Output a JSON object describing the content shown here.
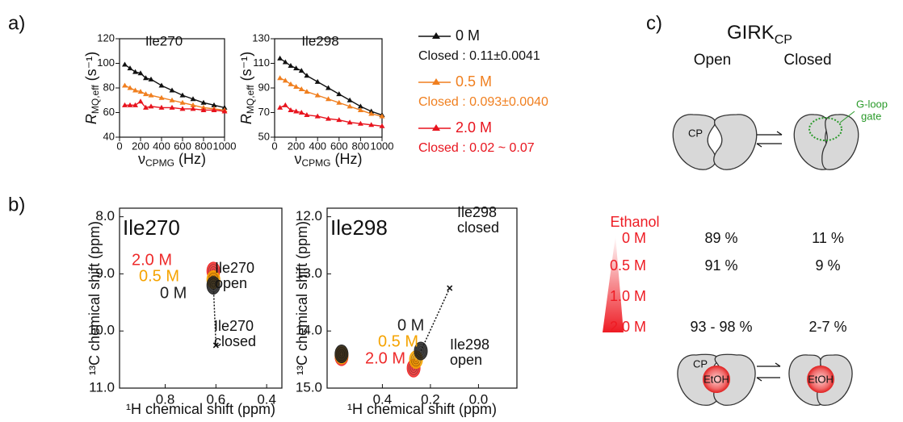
{
  "panel_labels": [
    "a)",
    "b)",
    "c)"
  ],
  "chart_data": [
    {
      "type": "line",
      "title": "Ile270",
      "xlabel": "ν",
      "xlabel_sub": "CPMG",
      "xlabel_unit": " (Hz)",
      "ylabel": "R",
      "ylabel_sub": "MQ,eff",
      "ylabel_unit": " (s⁻¹)",
      "x": [
        50,
        100,
        150,
        200,
        250,
        300,
        400,
        500,
        600,
        700,
        800,
        900,
        1000
      ],
      "series": [
        {
          "name": "0 M",
          "color": "#111111",
          "note": "Closed : 0.11±0.0041",
          "values": [
            99,
            96,
            93,
            92,
            88,
            87,
            82,
            78,
            74,
            71,
            68,
            66,
            64
          ]
        },
        {
          "name": "0.5 M",
          "color": "#f07f1f",
          "note": "Closed : 0.093±0.0040",
          "values": [
            82,
            80,
            78,
            77,
            75,
            74,
            72,
            70,
            68,
            66,
            64,
            63,
            62
          ]
        },
        {
          "name": "2.0 M",
          "color": "#e8141e",
          "note": "Closed :  0.02 ~ 0.07",
          "values": [
            66,
            66,
            66,
            69,
            64,
            65,
            64,
            64,
            63,
            63,
            62,
            62,
            61
          ]
        }
      ],
      "xlim": [
        0,
        1000
      ],
      "xticks": [
        0,
        200,
        400,
        600,
        800,
        1000
      ],
      "ylim": [
        40,
        120
      ],
      "yticks": [
        40,
        60,
        80,
        100,
        120
      ]
    },
    {
      "type": "line",
      "title": "Ile298",
      "xlabel": "ν",
      "xlabel_sub": "CPMG",
      "xlabel_unit": " (Hz)",
      "ylabel": "R",
      "ylabel_sub": "MQ,eff",
      "ylabel_unit": " (s⁻¹)",
      "x": [
        50,
        100,
        150,
        200,
        250,
        300,
        400,
        500,
        600,
        700,
        800,
        900,
        1000
      ],
      "series": [
        {
          "color": "#111111",
          "values": [
            114,
            111,
            108,
            106,
            104,
            100,
            95,
            90,
            85,
            80,
            75,
            71,
            68
          ]
        },
        {
          "color": "#f07f1f",
          "values": [
            98,
            96,
            93,
            91,
            89,
            87,
            84,
            81,
            78,
            75,
            72,
            69,
            67
          ]
        },
        {
          "color": "#e8141e",
          "values": [
            74,
            76,
            72,
            71,
            70,
            68,
            67,
            65,
            64,
            62,
            61,
            60,
            59
          ]
        }
      ],
      "xlim": [
        0,
        1000
      ],
      "xticks": [
        0,
        200,
        400,
        600,
        800,
        1000
      ],
      "ylim": [
        50,
        130
      ],
      "yticks": [
        50,
        70,
        90,
        110,
        130
      ]
    },
    {
      "type": "scatter",
      "title": "Ile270",
      "xlabel": "¹H chemical shift (ppm)",
      "ylabel": "¹³C chemical shift (ppm)",
      "series": [
        {
          "name": "0 M",
          "color": "#222222",
          "x": [
            0.61
          ],
          "values": [
            9.2
          ]
        },
        {
          "name": "0.5 M",
          "color": "#f5a300",
          "x": [
            0.61
          ],
          "values": [
            9.1
          ]
        },
        {
          "name": "2.0 M",
          "color": "#ee2a2a",
          "x": [
            0.61
          ],
          "values": [
            8.95
          ]
        }
      ],
      "open_label": [
        "Ile270",
        "open"
      ],
      "closed_label": [
        "Ile270",
        "closed"
      ],
      "closed_point": {
        "x": 0.6,
        "y": 10.25
      },
      "xlim": [
        0.98,
        0.34
      ],
      "xticks": [
        0.8,
        0.6,
        0.4
      ],
      "ylim": [
        11.0,
        7.85
      ],
      "yticks": [
        {
          "value": 8,
          "label": "8.0"
        },
        {
          "value": 9,
          "label": "9.0"
        },
        {
          "value": 10,
          "label": "10.0"
        },
        {
          "value": 11,
          "label": "11.0"
        }
      ]
    },
    {
      "type": "scatter",
      "title": "Ile298",
      "xlabel": "¹H chemical shift (ppm)",
      "ylabel": "¹³C chemical shift (ppm)",
      "series": [
        {
          "name": "0 M",
          "color": "#222222",
          "x": [
            0.57,
            0.24
          ],
          "values": [
            14.4,
            14.35
          ]
        },
        {
          "name": "0.5 M",
          "color": "#f5a300",
          "x": [
            0.57,
            0.26
          ],
          "values": [
            14.42,
            14.5
          ]
        },
        {
          "name": "2.0 M",
          "color": "#ee2a2a",
          "x": [
            0.57,
            0.27
          ],
          "values": [
            14.45,
            14.65
          ]
        }
      ],
      "open_label": [
        "Ile298",
        "open"
      ],
      "closed_label": [
        "Ile298",
        "closed"
      ],
      "closed_point": {
        "x": 0.12,
        "y": 13.25
      },
      "xlim": [
        0.63,
        -0.16
      ],
      "xticks": [
        0.4,
        0.2,
        {
          "value": 0,
          "label": "0.0"
        }
      ],
      "ylim": [
        15.0,
        11.85
      ],
      "yticks": [
        {
          "value": 12,
          "label": "12.0"
        },
        {
          "value": 13,
          "label": "13.0"
        },
        {
          "value": 14,
          "label": "14.0"
        },
        {
          "value": 15,
          "label": "15.0"
        }
      ]
    }
  ],
  "diagram": {
    "title": "GIRK",
    "title_sub": "CP",
    "states": [
      "Open",
      "Closed"
    ],
    "cp_label": "CP",
    "gate_label": [
      "G-loop",
      "gate"
    ],
    "ethanol_label": "Ethanol",
    "rows": [
      [
        "0 M",
        "89 %",
        "11 %"
      ],
      [
        "0.5 M",
        "91 %",
        "9 %"
      ],
      [
        "1.0 M"
      ],
      [
        "2.0 M",
        "93 - 98 %",
        "2-7 %"
      ]
    ],
    "bottom_labels": [
      "CP",
      "EtOH",
      "EtOH"
    ]
  }
}
